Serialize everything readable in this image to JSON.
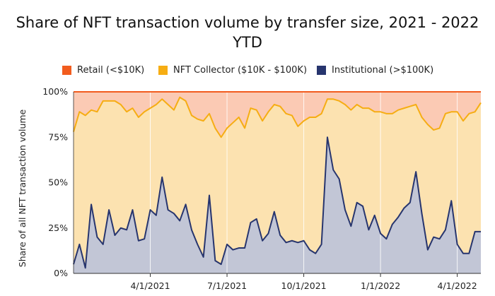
{
  "chart_data": {
    "type": "area",
    "title": "Share of NFT transaction volume by transfer size, 2021 - 2022 YTD",
    "ylabel": "Share of all NFT transaction volume",
    "xlabel": "",
    "ylim": [
      0,
      100
    ],
    "yticks": [
      "0%",
      "25%",
      "50%",
      "75%",
      "100%"
    ],
    "ytick_values": [
      0,
      25,
      50,
      75,
      100
    ],
    "xticks": [
      {
        "label": "4/1/2021",
        "index": 13
      },
      {
        "label": "7/1/2021",
        "index": 26
      },
      {
        "label": "10/1/2021",
        "index": 39
      },
      {
        "label": "1/1/2022",
        "index": 52
      },
      {
        "label": "4/1/2022",
        "index": 65
      }
    ],
    "x_count": 70,
    "legend_position": "top",
    "grid": "vertical",
    "series": [
      {
        "name": "Retail (<$10K)",
        "color": "#f25c1e",
        "fill": "#fbcab4",
        "values": [
          100,
          100,
          100,
          100,
          100,
          100,
          100,
          100,
          100,
          100,
          100,
          100,
          100,
          100,
          100,
          100,
          100,
          100,
          100,
          100,
          100,
          100,
          100,
          100,
          100,
          100,
          100,
          100,
          100,
          100,
          100,
          100,
          100,
          100,
          100,
          100,
          100,
          100,
          100,
          100,
          100,
          100,
          100,
          100,
          100,
          100,
          100,
          100,
          100,
          100,
          100,
          100,
          100,
          100,
          100,
          100,
          100,
          100,
          100,
          100,
          100,
          100,
          100,
          100,
          100,
          100,
          100,
          100,
          100,
          100
        ]
      },
      {
        "name": "NFT Collector ($10K - $100K)",
        "color": "#f6ad13",
        "fill": "#fce2b0",
        "values": [
          78,
          89,
          87,
          90,
          89,
          95,
          95,
          95,
          93,
          89,
          91,
          86,
          89,
          91,
          93,
          96,
          93,
          90,
          97,
          95,
          87,
          85,
          84,
          88,
          80,
          75,
          80,
          83,
          86,
          80,
          91,
          90,
          84,
          89,
          93,
          92,
          88,
          87,
          81,
          84,
          86,
          86,
          88,
          96,
          96,
          95,
          93,
          90,
          93,
          91,
          91,
          89,
          89,
          88,
          88,
          90,
          91,
          92,
          93,
          86,
          82,
          79,
          80,
          88,
          89,
          89,
          84,
          88,
          89,
          94
        ]
      },
      {
        "name": "Institutional (>$100K)",
        "color": "#27356e",
        "fill": "#c2c6d6",
        "values": [
          5,
          16,
          3,
          38,
          20,
          16,
          35,
          21,
          25,
          24,
          35,
          18,
          19,
          35,
          32,
          53,
          35,
          33,
          29,
          38,
          24,
          16,
          9,
          43,
          7,
          5,
          16,
          13,
          14,
          14,
          28,
          30,
          18,
          22,
          34,
          21,
          17,
          18,
          17,
          18,
          13,
          11,
          16,
          75,
          57,
          52,
          35,
          26,
          39,
          37,
          24,
          32,
          22,
          19,
          27,
          31,
          36,
          39,
          56,
          33,
          13,
          20,
          19,
          24,
          40,
          16,
          11,
          11,
          23,
          23
        ]
      }
    ]
  }
}
